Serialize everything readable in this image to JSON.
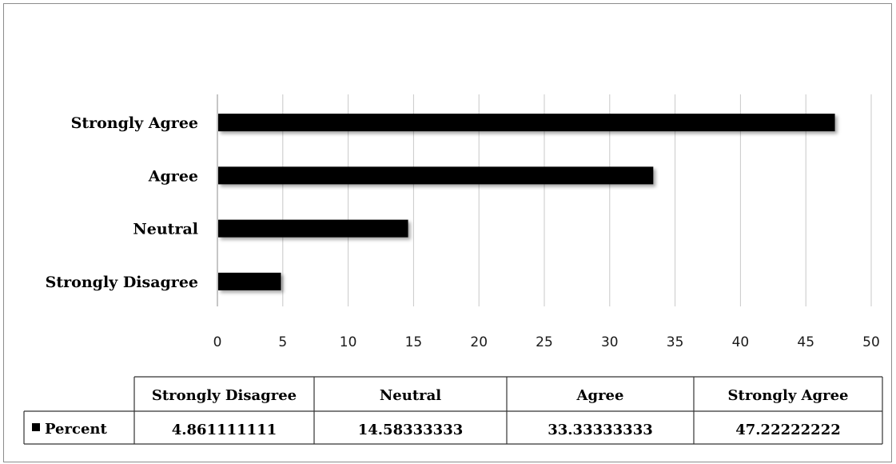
{
  "chart_data": {
    "type": "bar",
    "orientation": "horizontal",
    "categories": [
      "Strongly Disagree",
      "Neutral",
      "Agree",
      "Strongly Agree"
    ],
    "series": [
      {
        "name": "Percent",
        "values": [
          4.861111111,
          14.58333333,
          33.33333333,
          47.22222222
        ]
      }
    ],
    "xlim": [
      0,
      50
    ],
    "xticks": [
      0,
      5,
      10,
      15,
      20,
      25,
      30,
      35,
      40,
      45,
      50
    ],
    "grid": true,
    "data_table": {
      "headers": [
        "Strongly Disagree",
        "Neutral",
        "Agree",
        "Strongly Agree"
      ],
      "row_label": "Percent",
      "row_values": [
        "4.861111111",
        "14.58333333",
        "33.33333333",
        "47.22222222"
      ]
    },
    "colors": {
      "bar": "#000000",
      "grid": "#c8c8c8",
      "axis": "#8c8c8c"
    }
  }
}
